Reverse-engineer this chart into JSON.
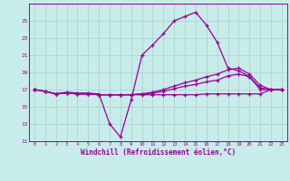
{
  "title": "Windchill (Refroidissement éolien,°C)",
  "background_color": "#c8ecea",
  "grid_color": "#aacfcf",
  "line_color": "#990099",
  "x_hours": [
    0,
    1,
    2,
    3,
    4,
    5,
    6,
    7,
    8,
    9,
    10,
    11,
    12,
    13,
    14,
    15,
    16,
    17,
    18,
    19,
    20,
    21,
    22,
    23
  ],
  "series1": [
    17.0,
    16.8,
    16.5,
    16.7,
    16.6,
    16.6,
    16.5,
    13.0,
    11.5,
    15.8,
    21.0,
    22.2,
    23.5,
    25.0,
    25.5,
    26.0,
    24.5,
    22.5,
    19.5,
    19.2,
    18.5,
    17.0,
    17.0,
    17.0
  ],
  "series2": [
    17.0,
    16.8,
    16.5,
    16.6,
    16.5,
    16.5,
    16.4,
    16.4,
    16.4,
    16.4,
    16.5,
    16.7,
    17.0,
    17.4,
    17.8,
    18.1,
    18.5,
    18.8,
    19.3,
    19.5,
    18.8,
    17.5,
    17.0,
    17.0
  ],
  "series3": [
    17.0,
    16.8,
    16.5,
    16.6,
    16.5,
    16.5,
    16.4,
    16.4,
    16.4,
    16.4,
    16.5,
    16.6,
    16.8,
    17.1,
    17.4,
    17.6,
    17.9,
    18.1,
    18.6,
    18.8,
    18.5,
    17.2,
    17.0,
    17.0
  ],
  "series4": [
    17.0,
    16.8,
    16.5,
    16.6,
    16.5,
    16.5,
    16.4,
    16.4,
    16.4,
    16.4,
    16.4,
    16.4,
    16.4,
    16.4,
    16.4,
    16.4,
    16.5,
    16.5,
    16.5,
    16.5,
    16.5,
    16.5,
    17.0,
    17.0
  ],
  "ylim": [
    11,
    27
  ],
  "yticks": [
    11,
    13,
    15,
    17,
    19,
    21,
    23,
    25
  ],
  "xlim": [
    -0.5,
    23.5
  ]
}
